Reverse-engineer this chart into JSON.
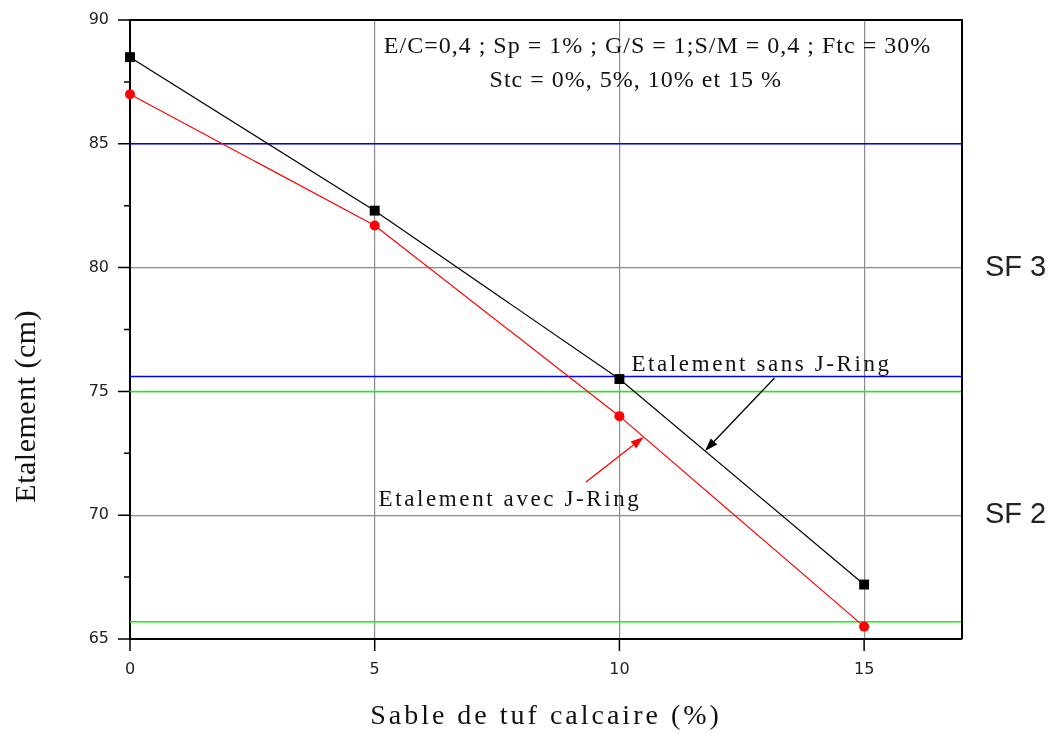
{
  "chart_data": {
    "type": "line",
    "xlabel": "Sable de tuf calcaire (%)",
    "ylabel": "Etalement (cm)",
    "x": [
      0,
      5,
      10,
      15
    ],
    "series": [
      {
        "name": "Etalement sans J-Ring",
        "color": "#000000",
        "marker": "square",
        "values": [
          88.5,
          82.3,
          75.5,
          67.2
        ]
      },
      {
        "name": "Etalement avec J-Ring",
        "color": "#ff0000",
        "marker": "circle",
        "values": [
          87.0,
          81.7,
          74.0,
          65.5
        ]
      }
    ],
    "xlim": [
      0,
      17
    ],
    "xticks": [
      0,
      5,
      10,
      15
    ],
    "ylim": [
      65,
      90
    ],
    "yticks": [
      65,
      {
        "value": 67.5,
        "label": null
      },
      70,
      {
        "value": 72.5,
        "label": null
      },
      75,
      {
        "value": 77.5,
        "label": null
      },
      80,
      {
        "value": 82.5,
        "label": null
      },
      85,
      {
        "value": 87.5,
        "label": null
      },
      90
    ],
    "grid": true,
    "ref_lines": [
      {
        "axis": "y",
        "value": 85,
        "color": "#0000ff"
      },
      {
        "axis": "y",
        "value": 75.6,
        "color": "#0000ff"
      },
      {
        "axis": "y",
        "value": 75,
        "color": "#00ff00"
      },
      {
        "axis": "y",
        "value": 65.7,
        "color": "#00ff00"
      }
    ],
    "annotations": [
      "E/C=0,4 ; Sp = 1% ; G/S = 1;S/M = 0,4 ; Ftc = 30%",
      "Stc = 0%, 5%, 10% et 15 %",
      "SF 3",
      "SF 2"
    ]
  }
}
